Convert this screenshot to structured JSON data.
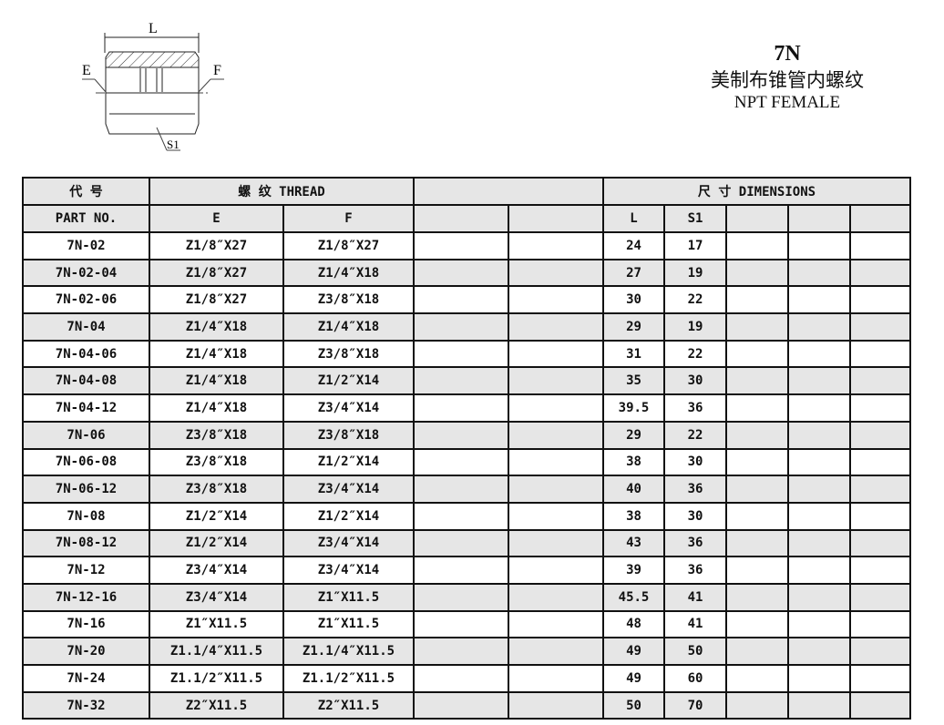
{
  "drawing": {
    "labels": {
      "length": "L",
      "end_e": "E",
      "end_f": "F",
      "hex": "S1"
    }
  },
  "title": {
    "code": "7N",
    "name_cn": "美制布锥管内螺纹",
    "name_en": "NPT FEMALE"
  },
  "table": {
    "header": {
      "part_cn": "代 号",
      "thread": "螺 纹  THREAD",
      "dimensions": "尺 寸   DIMENSIONS",
      "part_en": "PART  NO.",
      "e": "E",
      "f": "F",
      "l": "L",
      "s1": "S1"
    },
    "rows": [
      [
        "7N-02",
        "Z1/8″X27",
        "Z1/8″X27",
        "24",
        "17"
      ],
      [
        "7N-02-04",
        "Z1/8″X27",
        "Z1/4″X18",
        "27",
        "19"
      ],
      [
        "7N-02-06",
        "Z1/8″X27",
        "Z3/8″X18",
        "30",
        "22"
      ],
      [
        "7N-04",
        "Z1/4″X18",
        "Z1/4″X18",
        "29",
        "19"
      ],
      [
        "7N-04-06",
        "Z1/4″X18",
        "Z3/8″X18",
        "31",
        "22"
      ],
      [
        "7N-04-08",
        "Z1/4″X18",
        "Z1/2″X14",
        "35",
        "30"
      ],
      [
        "7N-04-12",
        "Z1/4″X18",
        "Z3/4″X14",
        "39.5",
        "36"
      ],
      [
        "7N-06",
        "Z3/8″X18",
        "Z3/8″X18",
        "29",
        "22"
      ],
      [
        "7N-06-08",
        "Z3/8″X18",
        "Z1/2″X14",
        "38",
        "30"
      ],
      [
        "7N-06-12",
        "Z3/8″X18",
        "Z3/4″X14",
        "40",
        "36"
      ],
      [
        "7N-08",
        "Z1/2″X14",
        "Z1/2″X14",
        "38",
        "30"
      ],
      [
        "7N-08-12",
        "Z1/2″X14",
        "Z3/4″X14",
        "43",
        "36"
      ],
      [
        "7N-12",
        "Z3/4″X14",
        "Z3/4″X14",
        "39",
        "36"
      ],
      [
        "7N-12-16",
        "Z3/4″X14",
        "Z1″X11.5",
        "45.5",
        "41"
      ],
      [
        "7N-16",
        "Z1″X11.5",
        "Z1″X11.5",
        "48",
        "41"
      ],
      [
        "7N-20",
        "Z1.1/4″X11.5",
        "Z1.1/4″X11.5",
        "49",
        "50"
      ],
      [
        "7N-24",
        "Z1.1/2″X11.5",
        "Z1.1/2″X11.5",
        "49",
        "60"
      ],
      [
        "7N-32",
        "Z2″X11.5",
        "Z2″X11.5",
        "50",
        "70"
      ]
    ]
  }
}
